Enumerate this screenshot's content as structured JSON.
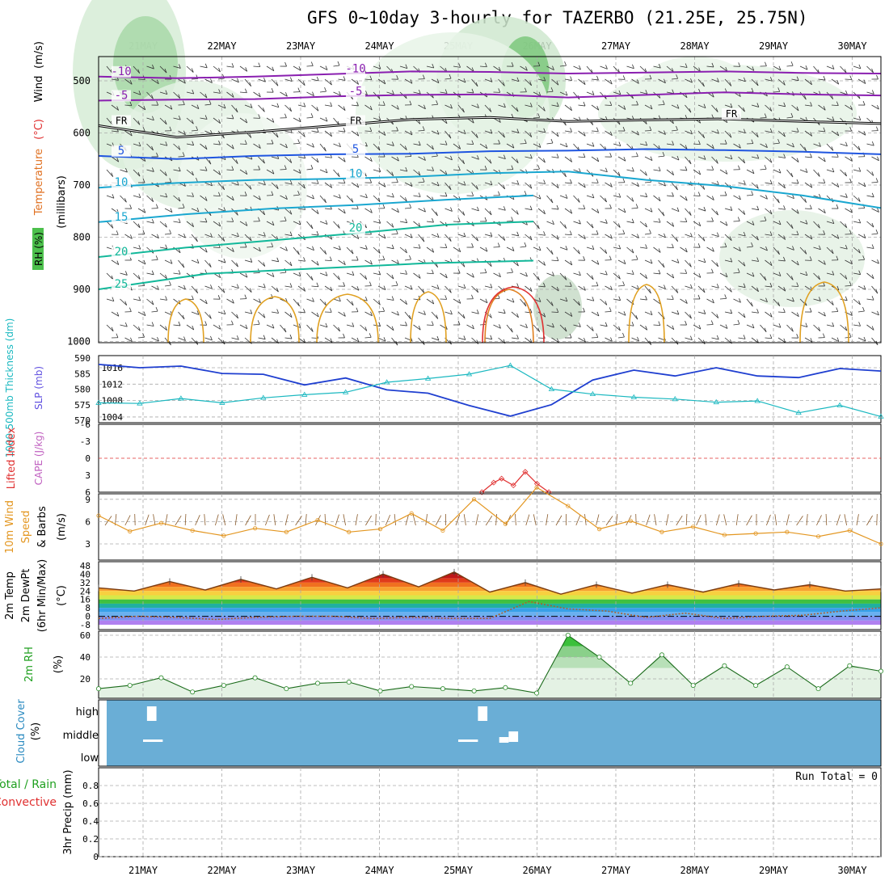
{
  "title": "GFS 0~10day 3-hourly for TAZERBO (21.25E, 25.75N)",
  "chart_data": [
    {
      "panel": "upper-air",
      "type": "contour",
      "dates": [
        "21MAY",
        "22MAY",
        "23MAY",
        "24MAY",
        "25MAY",
        "26MAY",
        "27MAY",
        "28MAY",
        "29MAY",
        "30MAY"
      ],
      "ylabel_parts": [
        "RH (%)",
        "Temperature",
        "(°C)",
        "Wind",
        "(m/s)",
        "(millibars)"
      ],
      "yticks": [
        "500",
        "600",
        "700",
        "800",
        "900",
        "1000"
      ],
      "ylim": [
        1000,
        450
      ],
      "freezing_label": "FR",
      "isotherms": [
        {
          "temp": -10,
          "labels": [
            "-10",
            "-10"
          ],
          "color": "#8a1fb0",
          "p": [
            492,
            495,
            492,
            487,
            482,
            483,
            486,
            484,
            482,
            485,
            486
          ]
        },
        {
          "temp": -5,
          "labels": [
            "-5",
            "-5"
          ],
          "color": "#8a1fb0",
          "p": [
            538,
            536,
            535,
            530,
            527,
            526,
            532,
            527,
            522,
            526,
            528
          ]
        },
        {
          "temp": 0,
          "labels": [
            "FR",
            "FR",
            "FR"
          ],
          "color": "#000000",
          "p": [
            586,
            608,
            598,
            586,
            574,
            570,
            578,
            575,
            573,
            578,
            582
          ]
        },
        {
          "temp": 5,
          "labels": [
            "5",
            "5"
          ],
          "color": "#1f55e0",
          "p": [
            644,
            650,
            644,
            641,
            640,
            635,
            634,
            631,
            633,
            636,
            641
          ]
        },
        {
          "temp": 10,
          "labels": [
            "10",
            "10"
          ],
          "color": "#1aa7d0",
          "p": [
            705,
            696,
            690,
            688,
            684,
            677,
            674,
            690,
            702,
            720,
            744
          ]
        },
        {
          "temp": 15,
          "labels": [
            "15"
          ],
          "color": "#1aa7d0",
          "p": [
            771,
            756,
            745,
            738,
            728,
            720
          ]
        },
        {
          "temp": 20,
          "labels": [
            "20",
            "20"
          ],
          "color": "#12b89a",
          "p": [
            838,
            820,
            806,
            792,
            776,
            770
          ]
        },
        {
          "temp": 25,
          "labels": [
            "25"
          ],
          "color": "#12b89a",
          "p": [
            900,
            870,
            860,
            850,
            845
          ]
        }
      ]
    },
    {
      "panel": "thickness-slp",
      "type": "line",
      "ylabel_left": "1000-500mb Thickness (dm)",
      "ylabel_right": "SLP (mb)",
      "yticks_left": [
        "590",
        "585",
        "580",
        "575",
        "570"
      ],
      "yticks_right": [
        "1016",
        "1012",
        "1008",
        "1004"
      ],
      "series": [
        {
          "name": "SLP (mb)",
          "color": "#1f3fd0",
          "values": [
            1016.8,
            1016,
            1016.4,
            1014.6,
            1014.4,
            1011.8,
            1013.5,
            1010.6,
            1009.8,
            1006.8,
            1004.2,
            1007,
            1013,
            1015.4,
            1014,
            1016,
            1014,
            1013.6,
            1015.8,
            1015.2
          ]
        },
        {
          "name": "1000-500mb Thickness (dm)",
          "color": "#1ab8c0",
          "values": [
            575.6,
            575.4,
            577,
            575.6,
            577.2,
            578.2,
            579,
            582.2,
            583.4,
            584.8,
            587.6,
            580,
            578.4,
            577.4,
            576.8,
            575.8,
            576.2,
            572.4,
            574.8,
            571.2
          ]
        }
      ]
    },
    {
      "panel": "cape-li",
      "type": "line",
      "ylabel_left": "Lifted Index",
      "ylabel_right": "CAPE (J/kg)",
      "yticks": [
        "-6",
        "-3",
        "0",
        "3",
        "6"
      ],
      "ylim": [
        6,
        -6
      ],
      "series": [
        {
          "name": "Lifted Index",
          "color": "#e03030",
          "x": [
            4.3,
            4.45,
            4.55,
            4.7,
            4.85,
            5.0,
            5.15
          ],
          "values": [
            6,
            4.3,
            3.6,
            4.8,
            2.4,
            4.5,
            6
          ]
        }
      ]
    },
    {
      "panel": "wind10m",
      "type": "line",
      "ylabel": [
        "10m Wind",
        "Speed",
        "& Barbs",
        "(m/s)"
      ],
      "yticks": [
        "9",
        "6",
        "3"
      ],
      "ylim": [
        0,
        11
      ],
      "series": [
        {
          "name": "10m Wind Speed",
          "color": "#e39620",
          "values": [
            6.8,
            4.7,
            5.8,
            4.8,
            4.1,
            5.1,
            4.6,
            6.2,
            4.6,
            5.0,
            7.1,
            4.8,
            9.0,
            5.7,
            10.6,
            8.1,
            5.0,
            6.1,
            4.6,
            5.3,
            4.2,
            4.4,
            4.6,
            4.0,
            4.8,
            3.0
          ]
        }
      ]
    },
    {
      "panel": "temp2m",
      "type": "area",
      "ylabel": [
        "2m Temp",
        "2m DewPt",
        "(6hr Min/Max)",
        "(°C)"
      ],
      "yticks": [
        "48",
        "40",
        "32",
        "24",
        "16",
        "8",
        "0",
        "-8"
      ],
      "ylim": [
        -8,
        48
      ],
      "series": [
        {
          "name": "2m Temp",
          "color": "#7a3b10",
          "values": [
            27,
            24,
            33,
            25,
            35,
            26,
            37,
            27,
            40,
            28,
            42,
            23,
            32,
            21,
            30,
            22,
            30,
            23,
            31,
            25,
            30,
            24,
            26
          ]
        },
        {
          "name": "2m DewPt",
          "color": "#a86030",
          "values": [
            -2,
            0,
            -1,
            -3,
            -1,
            0,
            0,
            -2,
            -1,
            -2,
            -2,
            14,
            7,
            5,
            -1,
            3,
            -2,
            0,
            1,
            5,
            8
          ]
        }
      ]
    },
    {
      "panel": "rh2m",
      "type": "area",
      "ylabel": [
        "2m RH",
        "(%)"
      ],
      "yticks": [
        "60",
        "40",
        "20"
      ],
      "ylim": [
        0,
        70
      ],
      "series": [
        {
          "name": "2m RH",
          "color": "#20a020",
          "values": [
            11,
            14,
            21,
            8,
            14,
            21,
            11,
            16,
            17,
            9,
            13,
            11,
            9,
            12,
            7,
            60,
            40,
            16,
            42,
            14,
            32,
            14,
            31,
            11,
            32,
            27
          ]
        }
      ]
    },
    {
      "panel": "cloud",
      "type": "bar",
      "ylabel": [
        "Cloud Cover",
        "(%)"
      ],
      "levels": [
        "high",
        "middle",
        "low"
      ],
      "blocks": [
        {
          "level": "high",
          "x": 0.35,
          "w": 0.12
        },
        {
          "level": "high",
          "x": 4.55,
          "w": 0.12
        },
        {
          "level": "middle",
          "x": 0.3,
          "w": 0.25,
          "thin": true
        },
        {
          "level": "middle",
          "x": 4.3,
          "w": 0.25,
          "thin": true
        },
        {
          "level": "middle",
          "x": 4.82,
          "w": 0.12
        },
        {
          "level": "middle",
          "x": 4.94,
          "w": 0.12
        }
      ]
    },
    {
      "panel": "precip",
      "type": "bar",
      "ylabel_parts": [
        "Total / Rain",
        "Convective",
        "3hr Precip (mm)"
      ],
      "run_total": "Run Total = 0",
      "yticks": [
        "0.8",
        "0.6",
        "0.4",
        "0.2",
        "0"
      ],
      "ylim": [
        0,
        1
      ],
      "values": []
    }
  ]
}
